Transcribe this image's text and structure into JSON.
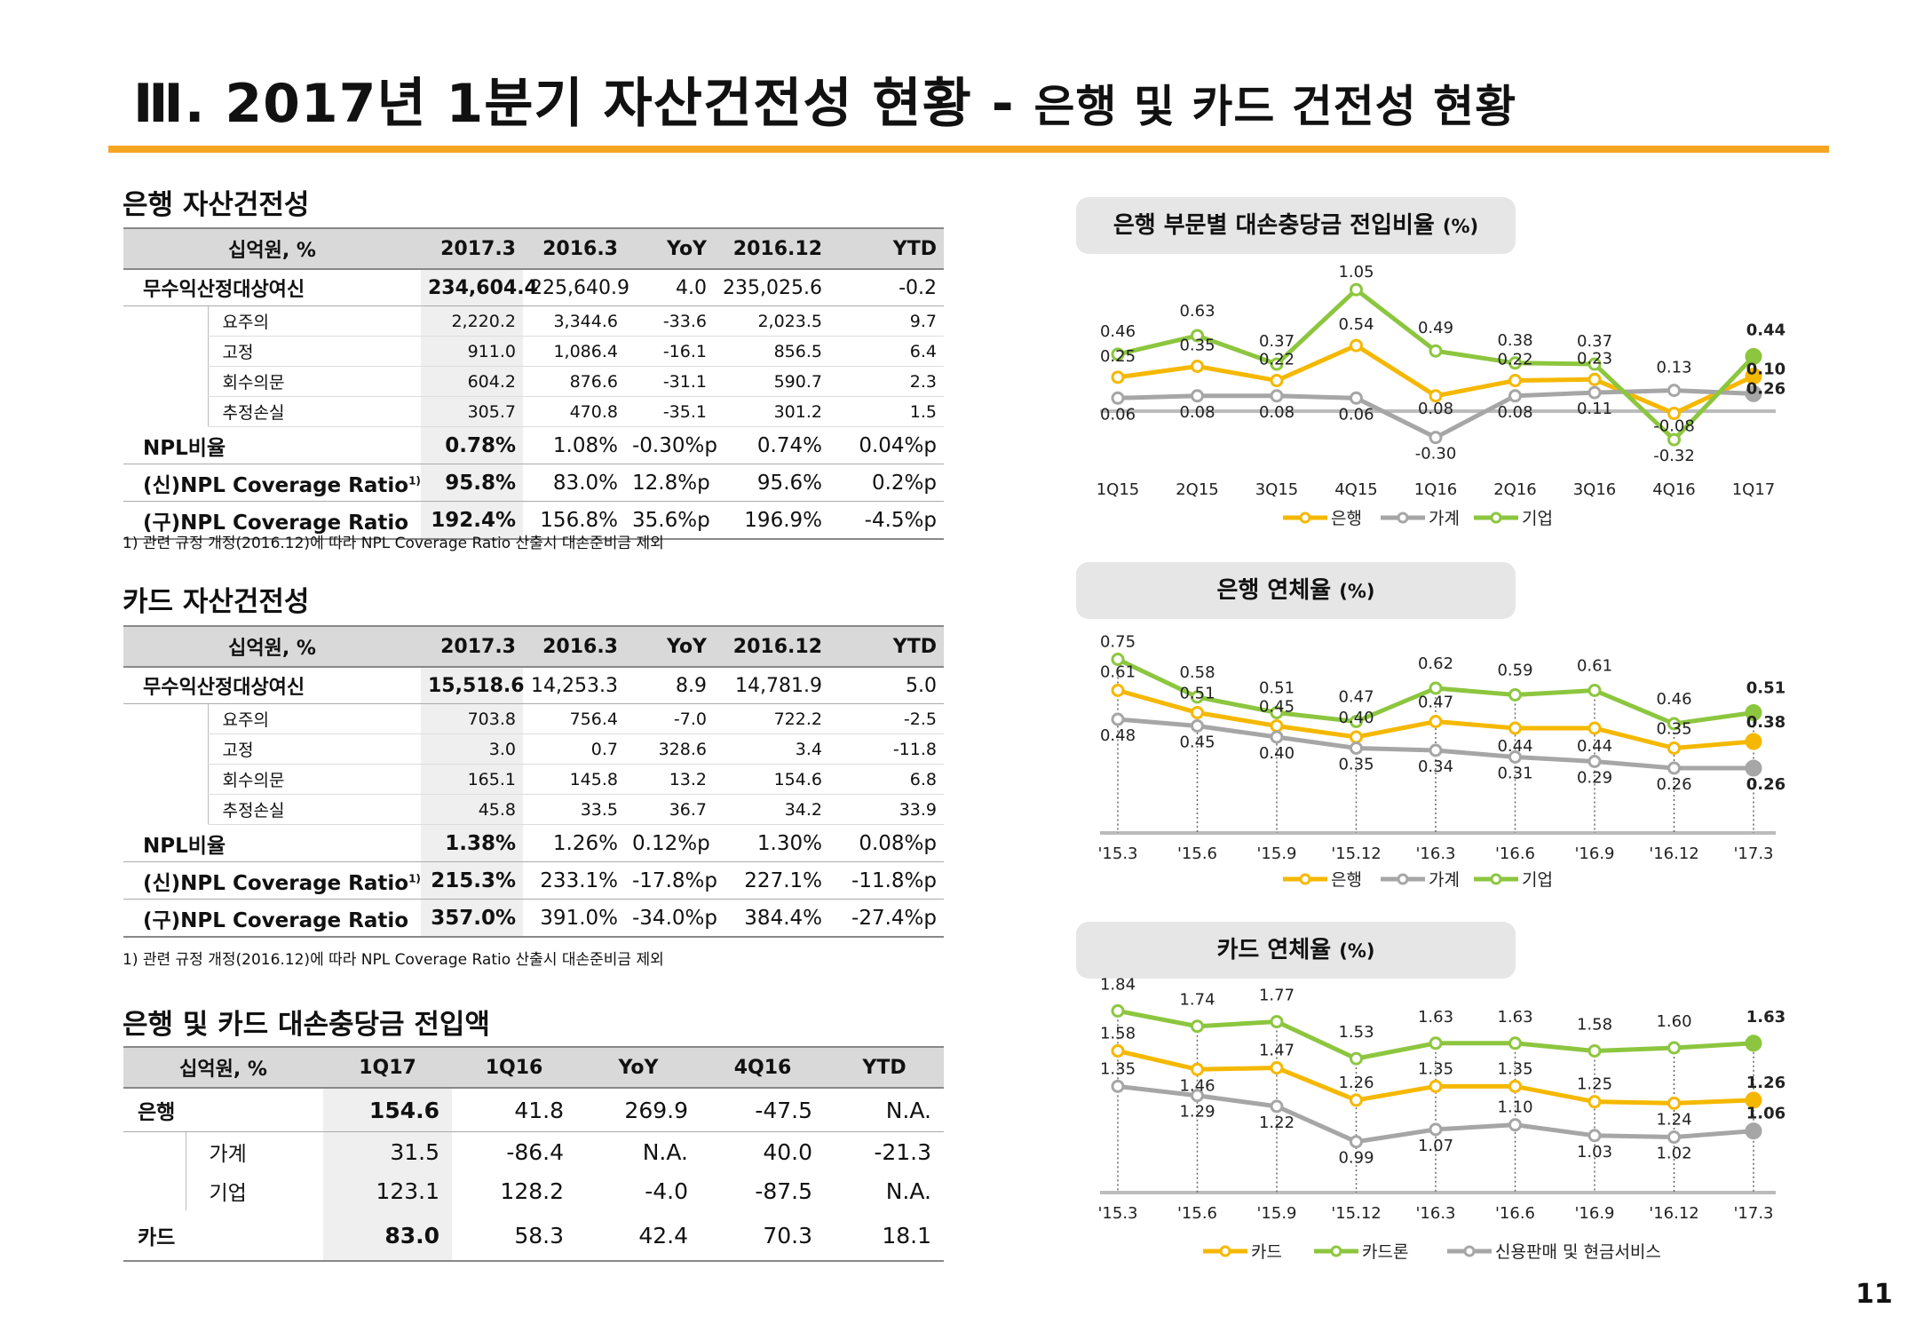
{
  "page": {
    "title": "Ⅲ. 2017년 1분기 자산건전성 현황 -",
    "subtitle": "은행 및 카드 건전성 현황",
    "page_number": "11"
  },
  "bank_asset_quality": {
    "title": "은행 자산건전성",
    "headers": [
      "십억원, %",
      "2017.3",
      "2016.3",
      "YoY",
      "2016.12",
      "YTD"
    ],
    "main_row": {
      "label": "무수익산정대상여신",
      "values": [
        "234,604.4",
        "225,640.9",
        "4.0",
        "235,025.6",
        "-0.2"
      ]
    },
    "sub_rows": [
      {
        "label": "요주의",
        "values": [
          "2,220.2",
          "3,344.6",
          "-33.6",
          "2,023.5",
          "9.7"
        ]
      },
      {
        "label": "고정",
        "values": [
          "911.0",
          "1,086.4",
          "-16.1",
          "856.5",
          "6.4"
        ]
      },
      {
        "label": "회수의문",
        "values": [
          "604.2",
          "876.6",
          "-31.1",
          "590.7",
          "2.3"
        ]
      },
      {
        "label": "추정손실",
        "values": [
          "305.7",
          "470.8",
          "-35.1",
          "301.2",
          "1.5"
        ]
      }
    ],
    "ratio_rows": [
      {
        "label": "NPL비율",
        "sup": "",
        "values": [
          "0.78%",
          "1.08%",
          "-0.30%p",
          "0.74%",
          "0.04%p"
        ]
      },
      {
        "label": "(신)NPL Coverage Ratio",
        "sup": "1)",
        "values": [
          "95.8%",
          "83.0%",
          "12.8%p",
          "95.6%",
          "0.2%p"
        ]
      },
      {
        "label": "(구)NPL Coverage Ratio",
        "sup": "",
        "values": [
          "192.4%",
          "156.8%",
          "35.6%p",
          "196.9%",
          "-4.5%p"
        ]
      }
    ],
    "footnote": "1) 관련 규정 개정(2016.12)에 따라 NPL Coverage Ratio 산출시 대손준비금 제외"
  },
  "card_asset_quality": {
    "title": "카드 자산건전성",
    "headers": [
      "십억원, %",
      "2017.3",
      "2016.3",
      "YoY",
      "2016.12",
      "YTD"
    ],
    "main_row": {
      "label": "무수익산정대상여신",
      "values": [
        "15,518.6",
        "14,253.3",
        "8.9",
        "14,781.9",
        "5.0"
      ]
    },
    "sub_rows": [
      {
        "label": "요주의",
        "values": [
          "703.8",
          "756.4",
          "-7.0",
          "722.2",
          "-2.5"
        ]
      },
      {
        "label": "고정",
        "values": [
          "3.0",
          "0.7",
          "328.6",
          "3.4",
          "-11.8"
        ]
      },
      {
        "label": "회수의문",
        "values": [
          "165.1",
          "145.8",
          "13.2",
          "154.6",
          "6.8"
        ]
      },
      {
        "label": "추정손실",
        "values": [
          "45.8",
          "33.5",
          "36.7",
          "34.2",
          "33.9"
        ]
      }
    ],
    "ratio_rows": [
      {
        "label": "NPL비율",
        "sup": "",
        "values": [
          "1.38%",
          "1.26%",
          "0.12%p",
          "1.30%",
          "0.08%p"
        ]
      },
      {
        "label": "(신)NPL Coverage Ratio",
        "sup": "1)",
        "values": [
          "215.3%",
          "233.1%",
          "-17.8%p",
          "227.1%",
          "-11.8%p"
        ]
      },
      {
        "label": "(구)NPL Coverage Ratio",
        "sup": "",
        "values": [
          "357.0%",
          "391.0%",
          "-34.0%p",
          "384.4%",
          "-27.4%p"
        ]
      }
    ],
    "footnote": "1) 관련 규정 개정(2016.12)에 따라 NPL Coverage Ratio 산출시 대손준비금 제외"
  },
  "provisions": {
    "title": "은행 및 카드 대손충당금 전입액",
    "headers": [
      "십억원, %",
      "1Q17",
      "1Q16",
      "YoY",
      "4Q16",
      "YTD"
    ],
    "rows": [
      {
        "label": "은행",
        "indent": false,
        "values": [
          "154.6",
          "41.8",
          "269.9",
          "-47.5",
          "N.A."
        ]
      },
      {
        "label": "가계",
        "indent": true,
        "values": [
          "31.5",
          "-86.4",
          "N.A.",
          "40.0",
          "-21.3"
        ]
      },
      {
        "label": "기업",
        "indent": true,
        "values": [
          "123.1",
          "128.2",
          "-4.0",
          "-87.5",
          "N.A."
        ]
      },
      {
        "label": "카드",
        "indent": false,
        "values": [
          "83.0",
          "58.3",
          "42.4",
          "70.3",
          "18.1"
        ]
      }
    ]
  },
  "colors": {
    "yellow": "#F5B800",
    "gray": "#A6A6A6",
    "green": "#8CC63F",
    "accent_rule": "#F5A623"
  },
  "chart_data": [
    {
      "type": "line",
      "title": "은행 부문별 대손충당금 전입비율",
      "unit": "(%)",
      "categories": [
        "1Q15",
        "2Q15",
        "3Q15",
        "4Q15",
        "1Q16",
        "2Q16",
        "3Q16",
        "4Q16",
        "1Q17"
      ],
      "series": [
        {
          "name": "은행",
          "color": "#F5B800",
          "values": [
            0.25,
            0.35,
            0.22,
            0.54,
            0.08,
            0.22,
            0.23,
            -0.08,
            0.26
          ]
        },
        {
          "name": "가계",
          "color": "#A6A6A6",
          "values": [
            0.06,
            0.08,
            0.08,
            0.06,
            -0.3,
            0.08,
            0.11,
            0.13,
            0.1
          ]
        },
        {
          "name": "기업",
          "color": "#8CC63F",
          "values": [
            0.46,
            0.63,
            0.37,
            1.05,
            0.49,
            0.38,
            0.37,
            -0.32,
            0.44
          ]
        }
      ],
      "labels": [
        {
          "series": 0,
          "texts": [
            "0.25",
            "0.35",
            "0.22",
            "0.54",
            "0.08",
            "0.22",
            "0.23",
            "-0.08",
            "0.26"
          ]
        },
        {
          "series": 1,
          "texts": [
            "0.06",
            "0.08",
            "0.08",
            "0.06",
            "-0.30",
            "0.08",
            "0.11",
            "0.13",
            "0.10"
          ]
        },
        {
          "series": 2,
          "texts": [
            "0.46",
            "0.63",
            "0.37",
            "1.05",
            "0.49",
            "0.38",
            "0.37",
            "-0.32",
            "0.44"
          ]
        }
      ],
      "ylim": [
        -0.4,
        1.1
      ],
      "legend": "bottom",
      "grid": false
    },
    {
      "type": "line",
      "title": "은행 연체율",
      "unit": "(%)",
      "categories": [
        "'15.3",
        "'15.6",
        "'15.9",
        "'15.12",
        "'16.3",
        "'16.6",
        "'16.9",
        "'16.12",
        "'17.3"
      ],
      "series": [
        {
          "name": "은행",
          "color": "#F5B800",
          "values": [
            0.61,
            0.51,
            0.45,
            0.4,
            0.47,
            0.44,
            0.44,
            0.35,
            0.38
          ]
        },
        {
          "name": "가계",
          "color": "#A6A6A6",
          "values": [
            0.48,
            0.45,
            0.4,
            0.35,
            0.34,
            0.31,
            0.29,
            0.26,
            0.26
          ]
        },
        {
          "name": "기업",
          "color": "#8CC63F",
          "values": [
            0.75,
            0.58,
            0.51,
            0.47,
            0.62,
            0.59,
            0.61,
            0.46,
            0.51
          ]
        }
      ],
      "labels": [
        {
          "series": 0,
          "texts": [
            "0.61",
            "0.51",
            "0.45",
            "0.40",
            "0.47",
            "0.44",
            "0.44",
            "0.35",
            "0.38"
          ]
        },
        {
          "series": 1,
          "texts": [
            "0.48",
            "0.45",
            "0.40",
            "0.35",
            "0.34",
            "0.31",
            "0.29",
            "0.26",
            "0.26"
          ]
        },
        {
          "series": 2,
          "texts": [
            "0.75",
            "0.58",
            "0.51",
            "0.47",
            "0.62",
            "0.59",
            "0.61",
            "0.46",
            "0.51"
          ]
        }
      ],
      "ylim": [
        0.1,
        0.8
      ],
      "legend": "bottom",
      "grid": false
    },
    {
      "type": "line",
      "title": "카드 연체율",
      "unit": "(%)",
      "categories": [
        "'15.3",
        "'15.6",
        "'15.9",
        "'15.12",
        "'16.3",
        "'16.6",
        "'16.9",
        "'16.12",
        "'17.3"
      ],
      "series": [
        {
          "name": "카드",
          "color": "#F5B800",
          "values": [
            1.58,
            1.46,
            1.47,
            1.26,
            1.35,
            1.35,
            1.25,
            1.24,
            1.26
          ]
        },
        {
          "name": "카드론",
          "color": "#8CC63F",
          "values": [
            1.84,
            1.74,
            1.77,
            1.53,
            1.63,
            1.63,
            1.58,
            1.6,
            1.63
          ]
        },
        {
          "name": "신용판매 및 현금서비스",
          "color": "#A6A6A6",
          "values": [
            1.35,
            1.29,
            1.22,
            0.99,
            1.07,
            1.1,
            1.03,
            1.02,
            1.06
          ]
        }
      ],
      "labels": [
        {
          "series": 0,
          "texts": [
            "1.58",
            "1.46",
            "1.47",
            "1.26",
            "1.35",
            "1.35",
            "1.25",
            "1.24",
            "1.26"
          ]
        },
        {
          "series": 1,
          "texts": [
            "1.84",
            "1.74",
            "1.77",
            "1.53",
            "1.63",
            "1.63",
            "1.58",
            "1.60",
            "1.63"
          ]
        },
        {
          "series": 2,
          "texts": [
            "1.35",
            "1.29",
            "1.22",
            "0.99",
            "1.07",
            "1.10",
            "1.03",
            "1.02",
            "1.06"
          ]
        }
      ],
      "ylim": [
        0.85,
        1.9
      ],
      "legend": "bottom",
      "grid": false
    }
  ]
}
